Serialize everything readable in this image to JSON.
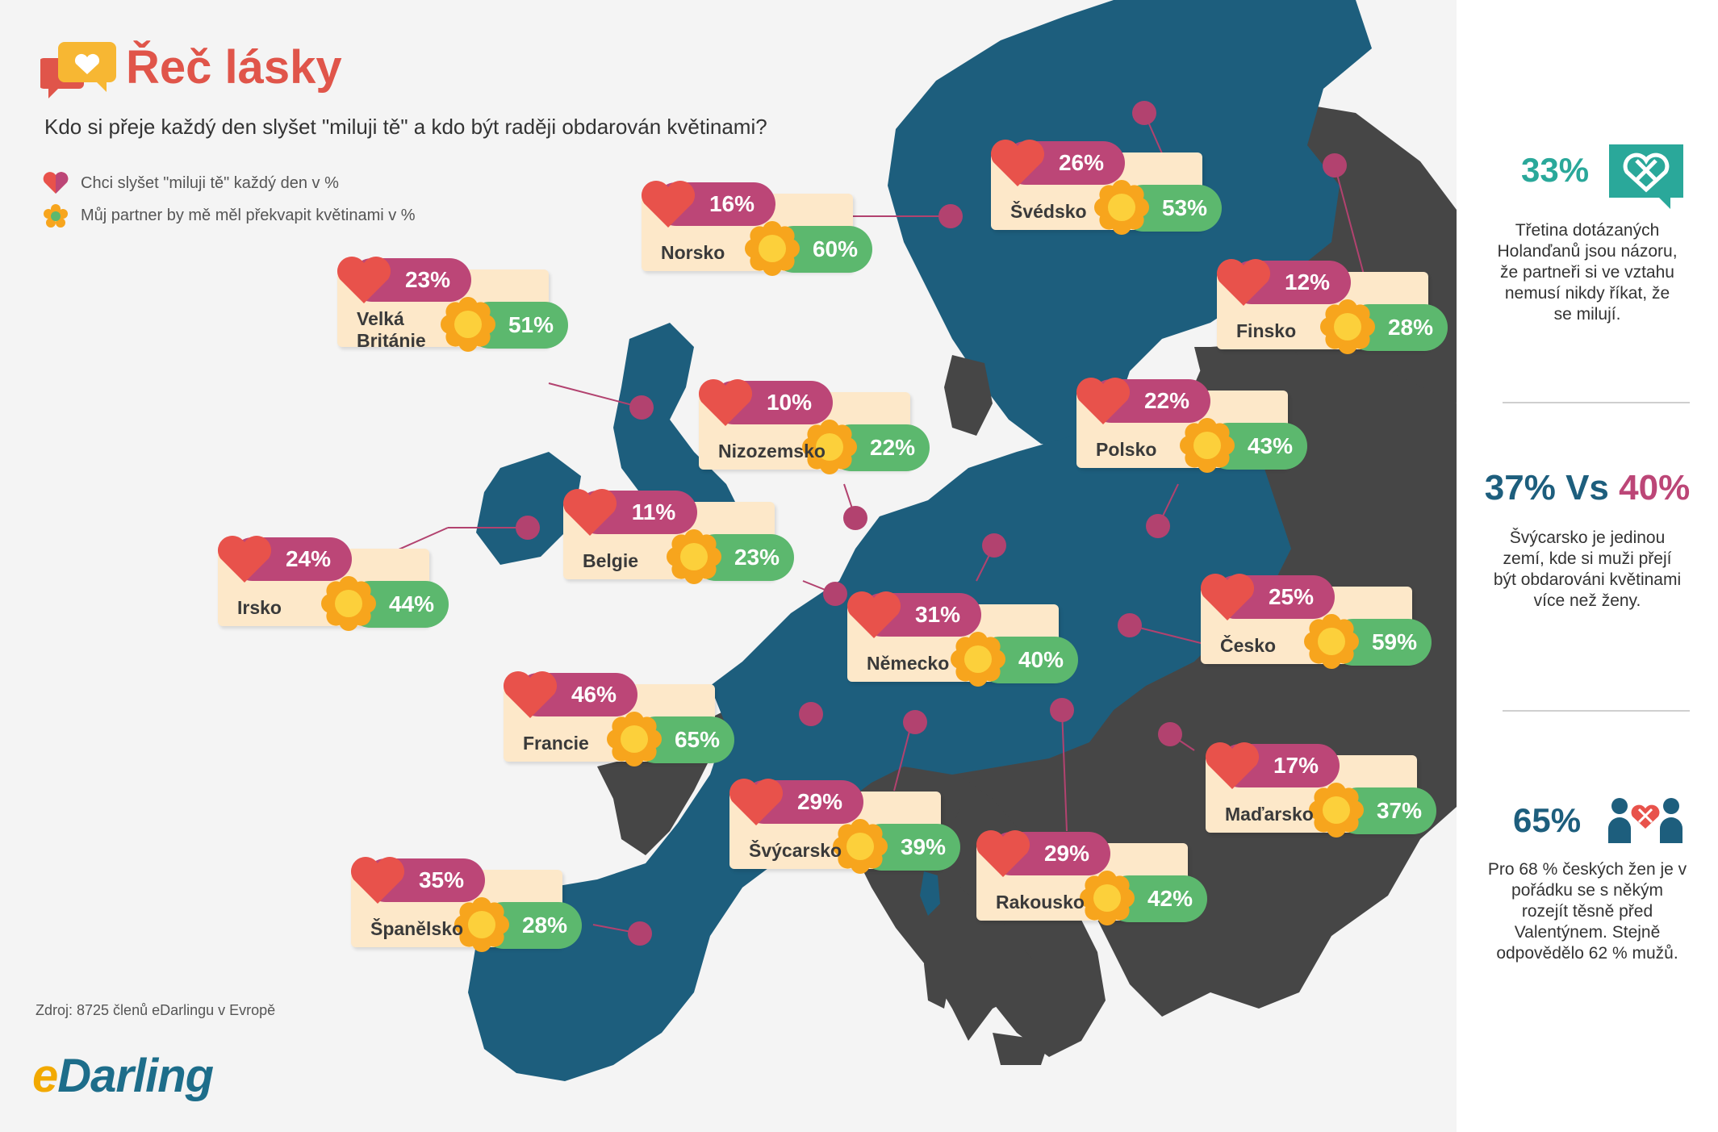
{
  "header": {
    "title": "Řeč lásky",
    "subtitle": "Kdo si přeje každý den slyšet \"miluji tě\" a kdo být raději obdarován květinami?"
  },
  "legend": {
    "love_label": "Chci slyšet \"miluji tě\" každý den v %",
    "flowers_label": "Můj partner by mě měl překvapit květinami v %"
  },
  "colors": {
    "sea": "#f4f4f4",
    "map_surveyed": "#1d5e7d",
    "map_other": "#464646",
    "love": "#bc4677",
    "flowers": "#5cb86e",
    "card": "#fde8c9",
    "heart": "#e8524b",
    "flower": "#f7a51d"
  },
  "countries": [
    {
      "name": "Norsko",
      "love": "16%",
      "flowers": "60%"
    },
    {
      "name": "Švédsko",
      "love": "26%",
      "flowers": "53%"
    },
    {
      "name": "Finsko",
      "love": "12%",
      "flowers": "28%"
    },
    {
      "name": "Velká Británie",
      "name_line1": "Velká",
      "name_line2": "Británie",
      "love": "23%",
      "flowers": "51%"
    },
    {
      "name": "Nizozemsko",
      "love": "10%",
      "flowers": "22%"
    },
    {
      "name": "Polsko",
      "love": "22%",
      "flowers": "43%"
    },
    {
      "name": "Irsko",
      "love": "24%",
      "flowers": "44%"
    },
    {
      "name": "Belgie",
      "love": "11%",
      "flowers": "23%"
    },
    {
      "name": "Německo",
      "love": "31%",
      "flowers": "40%"
    },
    {
      "name": "Česko",
      "love": "25%",
      "flowers": "59%"
    },
    {
      "name": "Francie",
      "love": "46%",
      "flowers": "65%"
    },
    {
      "name": "Maďarsko",
      "love": "17%",
      "flowers": "37%"
    },
    {
      "name": "Švýcarsko",
      "love": "29%",
      "flowers": "39%"
    },
    {
      "name": "Rakousko",
      "love": "29%",
      "flowers": "42%"
    },
    {
      "name": "Španělsko",
      "love": "35%",
      "flowers": "28%"
    }
  ],
  "sidebar": {
    "stat1": {
      "value": "33%",
      "text": "Třetina dotázaných Holanďanů jsou názoru, že partneři si ve vztahu nemusí nikdy říkat, že se milují."
    },
    "stat2": {
      "value_a": "37%",
      "vs": "Vs",
      "value_b": "40%",
      "text": "Švýcarsko je jedinou zemí, kde si muži přejí být obdarováni květinami více než ženy."
    },
    "stat3": {
      "value": "65%",
      "text": "Pro 68 % českých žen je v pořádku se s někým rozejít těsně před Valentýnem. Stejně odpovědělo 62 % mužů."
    }
  },
  "footer": {
    "source": "Zdroj: 8725 členů eDarlingu v Evropě",
    "logo_e": "e",
    "logo_rest": "Darling"
  }
}
